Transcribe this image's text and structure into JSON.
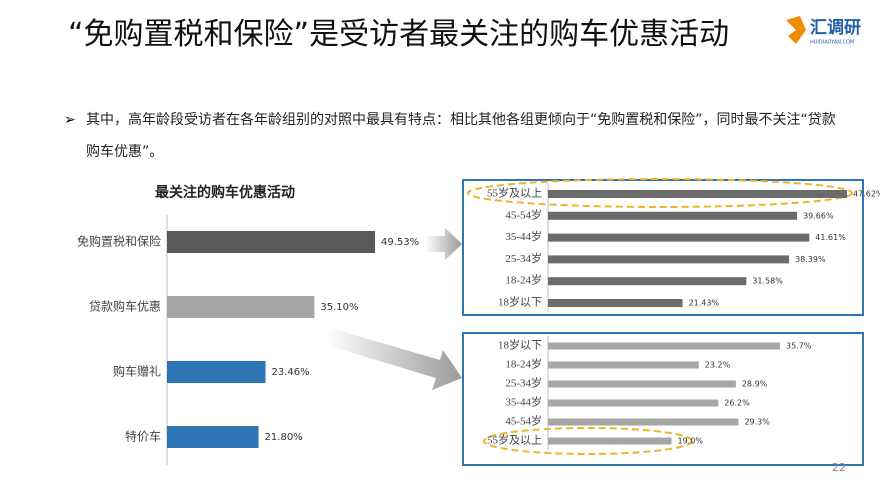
{
  "header": {
    "title": "“免购置税和保险”是受访者最关注的购车优惠活动",
    "logo": "汇调研",
    "logo_sub": "HUIDIAOYAN.COM"
  },
  "bullet": "其中，高年龄段受访者在各年龄组别的对照中最具有特点：相比其他各组更倾向于“免购置税和保险”，同时最不关注“贷款购车优惠”。",
  "page_number": "22",
  "chart_data": [
    {
      "type": "bar",
      "title": "最关注的购车优惠活动",
      "categories": [
        "免购置税和保险",
        "贷款购车优惠",
        "购车赠礼",
        "特价车"
      ],
      "values": [
        49.53,
        35.1,
        23.46,
        21.8
      ],
      "value_labels": [
        "49.53%",
        "35.10%",
        "23.46%",
        "21.80%"
      ],
      "colors": [
        "#595959",
        "#a6a6a6",
        "#2e75b6",
        "#2e75b6"
      ]
    },
    {
      "type": "bar",
      "categories": [
        "55岁及以上",
        "45-54岁",
        "35-44岁",
        "25-34岁",
        "18-24岁",
        "18岁以下"
      ],
      "values": [
        47.62,
        39.66,
        41.61,
        38.39,
        31.58,
        21.43
      ],
      "value_labels": [
        "47.62%",
        "39.66%",
        "41.61%",
        "38.39%",
        "31.58%",
        "21.43%"
      ],
      "color": "#6b6b6b"
    },
    {
      "type": "bar",
      "categories": [
        "18岁以下",
        "18-24岁",
        "25-34岁",
        "35-44岁",
        "45-54岁",
        "55岁及以上"
      ],
      "values": [
        35.7,
        23.2,
        28.9,
        26.2,
        29.3,
        19.0
      ],
      "value_labels": [
        "35.7%",
        "23.2%",
        "28.9%",
        "26.2%",
        "29.3%",
        "19.0%"
      ],
      "color": "#a6a6a6"
    }
  ]
}
